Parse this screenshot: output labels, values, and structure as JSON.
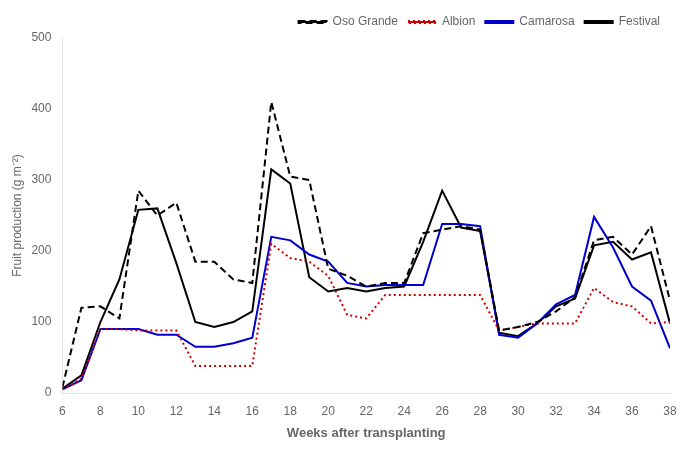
{
  "chart_data": {
    "type": "line",
    "xlabel": "Weeks after transplanting",
    "ylabel": "Fruit production (g m⁻²)",
    "x": [
      6,
      7,
      8,
      9,
      10,
      11,
      12,
      13,
      14,
      15,
      16,
      17,
      18,
      19,
      20,
      21,
      22,
      23,
      24,
      25,
      26,
      27,
      28,
      29,
      30,
      31,
      32,
      33,
      34,
      35,
      36,
      37,
      38
    ],
    "series": [
      {
        "name": "Oso Grande",
        "color": "#000000",
        "line_style": "dashed",
        "values": [
          8,
          120,
          122,
          105,
          285,
          250,
          268,
          185,
          185,
          160,
          155,
          410,
          305,
          300,
          175,
          165,
          150,
          155,
          155,
          225,
          230,
          235,
          230,
          88,
          93,
          100,
          115,
          135,
          215,
          220,
          195,
          235,
          130
        ]
      },
      {
        "name": "Albion",
        "color": "#cc0000",
        "line_style": "dotted",
        "values": [
          5,
          20,
          90,
          90,
          88,
          88,
          88,
          38,
          38,
          38,
          38,
          210,
          190,
          185,
          165,
          110,
          105,
          138,
          138,
          138,
          138,
          138,
          138,
          88,
          93,
          98,
          98,
          98,
          148,
          128,
          122,
          98,
          100
        ]
      },
      {
        "name": "Camarosa",
        "color": "#0000cc",
        "line_style": "solid",
        "values": [
          5,
          18,
          90,
          90,
          90,
          82,
          82,
          65,
          65,
          70,
          78,
          220,
          215,
          195,
          185,
          155,
          150,
          152,
          152,
          152,
          238,
          238,
          235,
          82,
          78,
          98,
          125,
          138,
          248,
          205,
          150,
          130,
          63
        ]
      },
      {
        "name": "Festival",
        "color": "#000000",
        "line_style": "solid",
        "values": [
          6,
          25,
          100,
          160,
          258,
          260,
          183,
          100,
          93,
          100,
          115,
          315,
          295,
          163,
          143,
          148,
          143,
          148,
          150,
          213,
          285,
          233,
          228,
          85,
          80,
          98,
          122,
          133,
          208,
          213,
          188,
          198,
          98
        ]
      }
    ],
    "xlim": [
      6,
      38
    ],
    "ylim": [
      0,
      500
    ],
    "xticks": [
      6,
      8,
      10,
      12,
      14,
      16,
      18,
      20,
      22,
      24,
      26,
      28,
      30,
      32,
      34,
      36,
      38
    ],
    "yticks": [
      0,
      100,
      200,
      300,
      400,
      500
    ],
    "grid": false,
    "legend": "upper right"
  }
}
